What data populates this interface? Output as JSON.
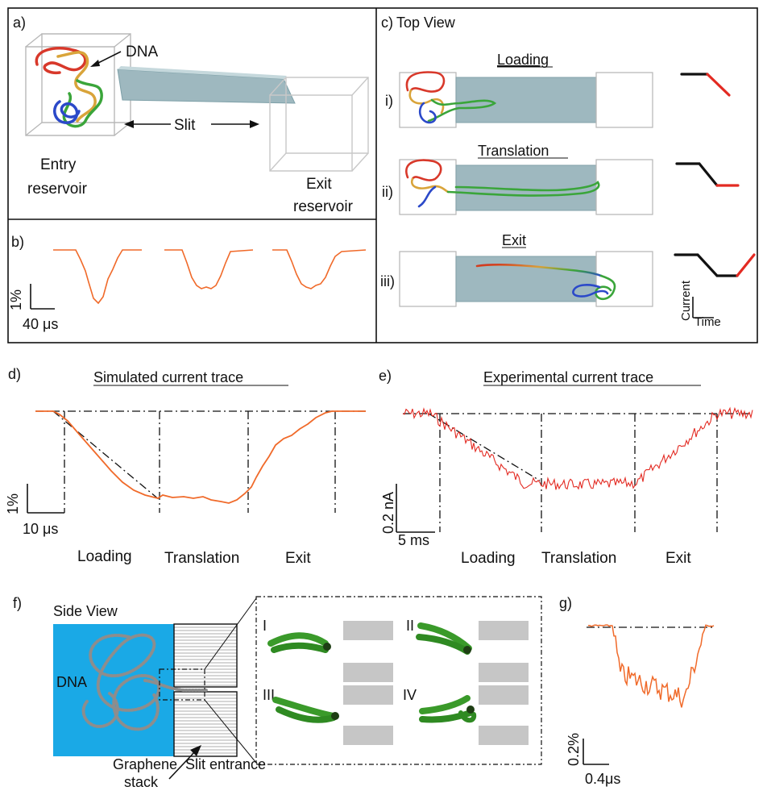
{
  "panel_a": {
    "letter": "a)",
    "dna_label": "DNA",
    "slit_label": "Slit",
    "entry_line1": "Entry",
    "entry_line2": "reservoir",
    "exit_line1": "Exit",
    "exit_line2": "reservoir"
  },
  "panel_b": {
    "letter": "b)",
    "scale_y": "1%",
    "scale_x": "40 μs"
  },
  "panel_c": {
    "letter": "c)",
    "title": "Top View",
    "rows": [
      {
        "numeral": "i)",
        "label": "Loading"
      },
      {
        "numeral": "ii)",
        "label": "Translation"
      },
      {
        "numeral": "iii)",
        "label": "Exit"
      }
    ],
    "axis_y": "Current",
    "axis_x": "Time"
  },
  "panel_d": {
    "letter": "d)",
    "title": "Simulated current trace",
    "scale_y": "1%",
    "scale_x": "10 μs",
    "phases": [
      "Loading",
      "Translation",
      "Exit"
    ]
  },
  "panel_e": {
    "letter": "e)",
    "title": "Experimental current trace",
    "scale_y": "0.2 nA",
    "scale_x": "5 ms",
    "phases": [
      "Loading",
      "Translation",
      "Exit"
    ]
  },
  "panel_f": {
    "letter": "f)",
    "side_view": "Side View",
    "dna_label": "DNA",
    "graphene_line1": "Graphene",
    "graphene_line2": "stack",
    "slit_entrance": "Slit entrance",
    "insets": [
      "I",
      "II",
      "III",
      "IV"
    ]
  },
  "panel_g": {
    "letter": "g)",
    "scale_y": "0.2%",
    "scale_x": "0.4μs"
  },
  "colors": {
    "trace_orange": "#f06a2a",
    "trace_red": "#e32a22",
    "slit_fill": "#9eb8bf",
    "side_blue": "#1aa9e6",
    "graphene_gray": "#c6c6c6",
    "dna_green": "#3a9a2a"
  }
}
